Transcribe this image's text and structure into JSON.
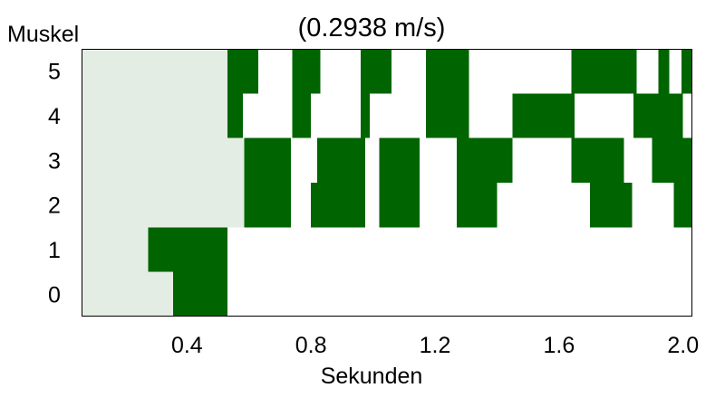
{
  "chart_data": {
    "type": "heatmap",
    "title": "(0.2938 m/s)",
    "xlabel": "Sekunden",
    "ylabel": "Muskel",
    "xlim": [
      0.06,
      2.03
    ],
    "ylim": [
      -0.5,
      5.5
    ],
    "x_ticks": [
      0.4,
      0.8,
      1.2,
      1.6,
      2.0
    ],
    "x_tick_labels": [
      "0.4",
      "0.8",
      "1.2",
      "1.6",
      "2.0"
    ],
    "rows": [
      0,
      1,
      2,
      3,
      4,
      5
    ],
    "row_labels": [
      "0",
      "1",
      "2",
      "3",
      "4",
      "5"
    ],
    "colors": {
      "active": "#006400",
      "stance_shading": "#e4ede4",
      "background": "#ffffff",
      "frame": "#000000"
    },
    "shaded_region": [
      {
        "row": 0,
        "x0": 0.06,
        "x1": 0.355
      },
      {
        "row": 1,
        "x0": 0.06,
        "x1": 0.275
      },
      {
        "row": 2,
        "x0": 0.06,
        "x1": 0.585
      },
      {
        "row": 3,
        "x0": 0.06,
        "x1": 0.585
      },
      {
        "row": 4,
        "x0": 0.06,
        "x1": 0.53
      },
      {
        "row": 5,
        "x0": 0.06,
        "x1": 0.53
      }
    ],
    "activations": [
      {
        "row": 0,
        "x0": 0.355,
        "x1": 0.53
      },
      {
        "row": 1,
        "x0": 0.275,
        "x1": 0.53
      },
      {
        "row": 2,
        "x0": 0.585,
        "x1": 0.735
      },
      {
        "row": 2,
        "x0": 0.8,
        "x1": 0.975
      },
      {
        "row": 2,
        "x0": 1.02,
        "x1": 1.15
      },
      {
        "row": 2,
        "x0": 1.27,
        "x1": 1.4
      },
      {
        "row": 2,
        "x0": 1.7,
        "x1": 1.835
      },
      {
        "row": 2,
        "x0": 1.97,
        "x1": 2.03
      },
      {
        "row": 3,
        "x0": 0.585,
        "x1": 0.735
      },
      {
        "row": 3,
        "x0": 0.82,
        "x1": 0.975
      },
      {
        "row": 3,
        "x0": 1.02,
        "x1": 1.15
      },
      {
        "row": 3,
        "x0": 1.27,
        "x1": 1.45
      },
      {
        "row": 3,
        "x0": 1.64,
        "x1": 1.81
      },
      {
        "row": 3,
        "x0": 1.9,
        "x1": 2.03
      },
      {
        "row": 4,
        "x0": 0.53,
        "x1": 0.58
      },
      {
        "row": 4,
        "x0": 0.74,
        "x1": 0.8
      },
      {
        "row": 4,
        "x0": 0.96,
        "x1": 0.99
      },
      {
        "row": 4,
        "x0": 1.17,
        "x1": 1.31
      },
      {
        "row": 4,
        "x0": 1.45,
        "x1": 1.65
      },
      {
        "row": 4,
        "x0": 1.84,
        "x1": 2.0
      },
      {
        "row": 5,
        "x0": 0.53,
        "x1": 0.63
      },
      {
        "row": 5,
        "x0": 0.74,
        "x1": 0.83
      },
      {
        "row": 5,
        "x0": 0.96,
        "x1": 1.06
      },
      {
        "row": 5,
        "x0": 1.17,
        "x1": 1.31
      },
      {
        "row": 5,
        "x0": 1.64,
        "x1": 1.85
      },
      {
        "row": 5,
        "x0": 1.92,
        "x1": 1.955
      },
      {
        "row": 5,
        "x0": 1.995,
        "x1": 2.03
      }
    ]
  }
}
